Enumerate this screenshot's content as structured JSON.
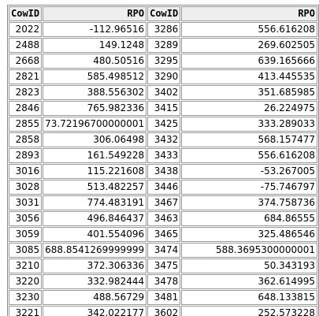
{
  "table": {
    "headers": [
      "CowID",
      "RPO",
      "CowID",
      "RPO"
    ],
    "rows": [
      [
        "2022",
        "-112.96516",
        "3286",
        "556.616208"
      ],
      [
        "2488",
        "149.1248",
        "3289",
        "269.602505"
      ],
      [
        "2668",
        "480.50516",
        "3295",
        "639.165666"
      ],
      [
        "2821",
        "585.498512",
        "3290",
        "413.445535"
      ],
      [
        "2823",
        "388.556302",
        "3402",
        "351.685985"
      ],
      [
        "2846",
        "765.982336",
        "3415",
        "26.224975"
      ],
      [
        "2855",
        "73.72196700000001",
        "3425",
        "333.289033"
      ],
      [
        "2858",
        "306.06498",
        "3432",
        "568.157477"
      ],
      [
        "2893",
        "161.549228",
        "3433",
        "556.616208"
      ],
      [
        "3016",
        "115.221608",
        "3438",
        "-53.267005"
      ],
      [
        "3028",
        "513.482257",
        "3446",
        "-75.746797"
      ],
      [
        "3031",
        "774.483191",
        "3467",
        "374.758736"
      ],
      [
        "3056",
        "496.846437",
        "3463",
        "684.86555"
      ],
      [
        "3059",
        "401.554096",
        "3465",
        "325.486546"
      ],
      [
        "3085",
        "688.8541269999999",
        "3474",
        "588.3695300000001"
      ],
      [
        "3210",
        "372.306336",
        "3475",
        "50.343193"
      ],
      [
        "3220",
        "332.982444",
        "3478",
        "362.614995"
      ],
      [
        "3230",
        "488.56729",
        "3481",
        "648.133815"
      ],
      [
        "3221",
        "342.022177",
        "3602",
        "252.573228"
      ]
    ]
  }
}
